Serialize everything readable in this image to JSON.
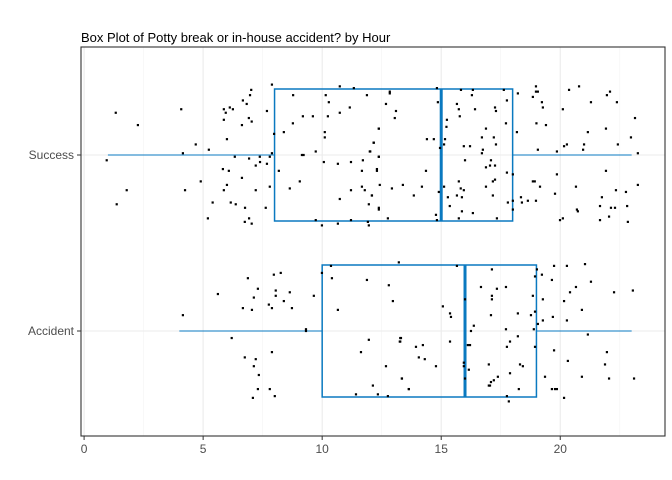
{
  "chart_data": {
    "type": "box",
    "title": "Box Plot of Potty break or in-house accident? by Hour",
    "xlabel": "",
    "ylabel": "",
    "xlim": [
      -0.13,
      24.4
    ],
    "x_ticks": [
      "0",
      "5",
      "10",
      "15",
      "20"
    ],
    "grid": true,
    "orientation": "horizontal",
    "colors": {
      "box": "#0a79c0",
      "points": "#000000",
      "grid": "#ebebeb",
      "border": "#333333"
    },
    "categories": [
      "Accident",
      "Success"
    ],
    "boxes": [
      {
        "category": "Accident",
        "min": 4,
        "q1": 10,
        "median": 16,
        "q3": 19,
        "max": 23
      },
      {
        "category": "Success",
        "min": 1,
        "q1": 8,
        "median": 15,
        "q3": 18,
        "max": 23
      }
    ],
    "points": {
      "Success": [
        [
          1.33,
          2.24
        ],
        [
          2.26,
          2.17
        ],
        [
          0.95,
          1.97
        ],
        [
          1.79,
          1.8
        ],
        [
          1.37,
          1.72
        ],
        [
          4.08,
          2.26
        ],
        [
          4.15,
          2.01
        ],
        [
          4.24,
          1.8
        ],
        [
          4.69,
          2.06
        ],
        [
          4.9,
          1.85
        ],
        [
          5.24,
          2.03
        ],
        [
          5.4,
          1.73
        ],
        [
          5.2,
          1.64
        ],
        [
          5.87,
          2.26
        ],
        [
          6.12,
          2.27
        ],
        [
          6.25,
          2.26
        ],
        [
          5.95,
          2.24
        ],
        [
          5.87,
          2.2
        ],
        [
          6.0,
          2.09
        ],
        [
          6.33,
          1.99
        ],
        [
          5.83,
          1.92
        ],
        [
          6.08,
          1.91
        ],
        [
          6.0,
          1.83
        ],
        [
          5.87,
          1.8
        ],
        [
          6.16,
          1.73
        ],
        [
          6.37,
          1.72
        ],
        [
          6.67,
          2.31
        ],
        [
          6.83,
          2.29
        ],
        [
          6.97,
          2.34
        ],
        [
          7.02,
          2.37
        ],
        [
          6.63,
          2.17
        ],
        [
          6.92,
          2.21
        ],
        [
          7.04,
          2.19
        ],
        [
          6.93,
          1.98
        ],
        [
          7.21,
          1.94
        ],
        [
          7.38,
          1.99
        ],
        [
          7.39,
          1.96
        ],
        [
          6.63,
          1.87
        ],
        [
          7.21,
          1.8
        ],
        [
          6.76,
          1.7
        ],
        [
          6.93,
          1.64
        ],
        [
          6.75,
          1.62
        ],
        [
          7.04,
          1.61
        ],
        [
          7.68,
          2.25
        ],
        [
          7.89,
          2.4
        ],
        [
          7.89,
          2.01
        ],
        [
          7.8,
          1.99
        ],
        [
          7.68,
          1.95
        ],
        [
          7.8,
          1.82
        ],
        [
          7.63,
          1.7
        ],
        [
          7.98,
          2.12
        ],
        [
          8.18,
          1.91
        ],
        [
          8.78,
          2.34
        ],
        [
          10.15,
          2.34
        ],
        [
          10.28,
          2.3
        ],
        [
          10.74,
          2.39
        ],
        [
          11.33,
          2.38
        ],
        [
          11.88,
          2.34
        ],
        [
          11.16,
          2.27
        ],
        [
          10.74,
          2.24
        ],
        [
          9.19,
          2.22
        ],
        [
          9.61,
          2.22
        ],
        [
          10.24,
          2.22
        ],
        [
          8.77,
          2.18
        ],
        [
          8.39,
          2.13
        ],
        [
          10.11,
          2.13
        ],
        [
          10.11,
          2.1
        ],
        [
          12.38,
          2.15
        ],
        [
          12.16,
          2.07
        ],
        [
          12.0,
          2.02
        ],
        [
          9.73,
          2.02
        ],
        [
          9.15,
          2.0
        ],
        [
          9.22,
          2.0
        ],
        [
          10.07,
          1.96
        ],
        [
          10.66,
          1.95
        ],
        [
          11.21,
          1.96
        ],
        [
          11.71,
          1.97
        ],
        [
          12.38,
          1.99
        ],
        [
          11.67,
          1.91
        ],
        [
          12.3,
          1.91
        ],
        [
          9.06,
          1.85
        ],
        [
          8.64,
          1.81
        ],
        [
          11.21,
          1.8
        ],
        [
          11.67,
          1.82
        ],
        [
          11.79,
          1.8
        ],
        [
          12.09,
          1.77
        ],
        [
          10.74,
          1.75
        ],
        [
          11.96,
          1.72
        ],
        [
          12.38,
          1.7
        ],
        [
          9.73,
          1.63
        ],
        [
          9.99,
          1.6
        ],
        [
          10.66,
          1.61
        ],
        [
          11.21,
          1.63
        ],
        [
          11.92,
          1.62
        ],
        [
          11.96,
          1.6
        ],
        [
          12.84,
          2.36
        ],
        [
          12.84,
          2.35
        ],
        [
          12.68,
          2.29
        ],
        [
          13.1,
          2.25
        ],
        [
          13.05,
          2.21
        ],
        [
          12.38,
          2.15
        ],
        [
          12.17,
          2.07
        ],
        [
          12.02,
          2.02
        ],
        [
          12.38,
          1.99
        ],
        [
          12.3,
          1.92
        ],
        [
          12.42,
          1.83
        ],
        [
          12.93,
          1.81
        ],
        [
          13.39,
          1.83
        ],
        [
          13.85,
          1.77
        ],
        [
          14.19,
          1.82
        ],
        [
          14.36,
          1.91
        ],
        [
          12.09,
          1.77
        ],
        [
          12.38,
          1.69
        ],
        [
          12.76,
          1.64
        ],
        [
          14.82,
          2.38
        ],
        [
          14.86,
          2.3
        ],
        [
          14.4,
          2.09
        ],
        [
          14.69,
          2.09
        ],
        [
          14.95,
          2.04
        ],
        [
          14.78,
          1.66
        ],
        [
          14.82,
          1.63
        ],
        [
          15.83,
          2.37
        ],
        [
          16.33,
          2.37
        ],
        [
          16.29,
          2.34
        ],
        [
          15.66,
          2.29
        ],
        [
          15.74,
          2.26
        ],
        [
          15.78,
          2.22
        ],
        [
          16.42,
          2.26
        ],
        [
          15.24,
          2.2
        ],
        [
          15.22,
          2.16
        ],
        [
          15.16,
          2.09
        ],
        [
          15.12,
          2.06
        ],
        [
          15.95,
          2.05
        ],
        [
          16.21,
          2.05
        ],
        [
          16.71,
          2.1
        ],
        [
          16.88,
          2.15
        ],
        [
          16.75,
          2.03
        ],
        [
          16.71,
          2.01
        ],
        [
          17.21,
          2.1
        ],
        [
          17.3,
          2.06
        ],
        [
          17.26,
          2.27
        ],
        [
          17.3,
          2.25
        ],
        [
          17.72,
          2.18
        ],
        [
          17.76,
          2.31
        ],
        [
          17.63,
          2.37
        ],
        [
          16.0,
          1.97
        ],
        [
          17.09,
          1.97
        ],
        [
          17.05,
          1.94
        ],
        [
          17.26,
          1.94
        ],
        [
          16.88,
          1.93
        ],
        [
          17.76,
          1.9
        ],
        [
          18.01,
          1.89
        ],
        [
          17.26,
          1.86
        ],
        [
          17.17,
          1.85
        ],
        [
          16.88,
          1.82
        ],
        [
          15.74,
          1.85
        ],
        [
          15.82,
          1.81
        ],
        [
          15.95,
          1.8
        ],
        [
          15.12,
          1.82
        ],
        [
          15.28,
          1.76
        ],
        [
          15.66,
          1.77
        ],
        [
          15.87,
          1.76
        ],
        [
          14.9,
          1.79
        ],
        [
          15.36,
          1.71
        ],
        [
          15.87,
          1.68
        ],
        [
          16.33,
          1.67
        ],
        [
          15.74,
          1.64
        ],
        [
          17.34,
          1.64
        ],
        [
          17.17,
          1.77
        ],
        [
          17.8,
          1.73
        ],
        [
          18.01,
          1.74
        ],
        [
          18.01,
          1.69
        ],
        [
          18.22,
          2.35
        ],
        [
          18.18,
          2.13
        ],
        [
          18.98,
          2.39
        ],
        [
          18.98,
          2.36
        ],
        [
          19.06,
          2.36
        ],
        [
          18.85,
          2.33
        ],
        [
          19.23,
          2.3
        ],
        [
          19.27,
          2.27
        ],
        [
          19.0,
          2.18
        ],
        [
          19.4,
          2.17
        ],
        [
          20.11,
          2.26
        ],
        [
          20.37,
          2.37
        ],
        [
          20.79,
          2.39
        ],
        [
          21.29,
          2.3
        ],
        [
          22.09,
          2.36
        ],
        [
          21.96,
          2.34
        ],
        [
          22.38,
          2.3
        ],
        [
          21.16,
          2.13
        ],
        [
          21.92,
          2.15
        ],
        [
          23.14,
          2.21
        ],
        [
          22.97,
          2.1
        ],
        [
          22.42,
          2.06
        ],
        [
          21.0,
          2.06
        ],
        [
          20.96,
          2.03
        ],
        [
          20.28,
          2.06
        ],
        [
          20.16,
          2.05
        ],
        [
          19.86,
          2.02
        ],
        [
          19.06,
          2.03
        ],
        [
          23.26,
          2.01
        ],
        [
          21.92,
          1.91
        ],
        [
          19.86,
          1.89
        ],
        [
          18.85,
          1.85
        ],
        [
          18.93,
          1.85
        ],
        [
          19.15,
          1.82
        ],
        [
          20.66,
          1.82
        ],
        [
          19.78,
          1.78
        ],
        [
          22.34,
          1.8
        ],
        [
          22.76,
          1.79
        ],
        [
          23.26,
          1.83
        ],
        [
          21.75,
          1.76
        ],
        [
          18.35,
          1.76
        ],
        [
          18.39,
          1.73
        ],
        [
          18.64,
          1.74
        ],
        [
          18.98,
          1.74
        ],
        [
          20.7,
          1.69
        ],
        [
          20.74,
          1.68
        ],
        [
          21.67,
          1.71
        ],
        [
          22.13,
          1.7
        ],
        [
          22.3,
          1.7
        ],
        [
          22.81,
          1.71
        ],
        [
          20.11,
          1.64
        ],
        [
          19.99,
          1.63
        ],
        [
          21.67,
          1.63
        ],
        [
          22.05,
          1.65
        ],
        [
          22.84,
          1.62
        ]
      ],
      "Accident": [
        [
          4.15,
          1.09
        ],
        [
          5.62,
          1.21
        ],
        [
          6.88,
          1.3
        ],
        [
          7.3,
          1.24
        ],
        [
          7.13,
          1.19
        ],
        [
          6.67,
          1.13
        ],
        [
          7.05,
          1.12
        ],
        [
          7.97,
          1.32
        ],
        [
          8.26,
          1.33
        ],
        [
          8.05,
          1.23
        ],
        [
          8.05,
          1.2
        ],
        [
          8.64,
          1.22
        ],
        [
          7.76,
          1.15
        ],
        [
          7.89,
          1.13
        ],
        [
          8.39,
          1.17
        ],
        [
          8.73,
          1.13
        ],
        [
          9.65,
          1.2
        ],
        [
          9.99,
          1.33
        ],
        [
          10.37,
          1.37
        ],
        [
          10.41,
          1.3
        ],
        [
          9.32,
          1.01
        ],
        [
          9.32,
          1.0
        ],
        [
          6.2,
          0.96
        ],
        [
          6.75,
          0.85
        ],
        [
          7.21,
          0.84
        ],
        [
          7.13,
          0.8
        ],
        [
          7.89,
          0.88
        ],
        [
          7.34,
          0.75
        ],
        [
          7.3,
          0.67
        ],
        [
          7.09,
          0.62
        ],
        [
          7.8,
          0.67
        ],
        [
          8.01,
          0.63
        ],
        [
          10.66,
          1.12
        ],
        [
          11.88,
          1.29
        ],
        [
          12.8,
          1.26
        ],
        [
          12.97,
          1.17
        ],
        [
          13.22,
          1.39
        ],
        [
          11.96,
          0.95
        ],
        [
          13.31,
          0.96
        ],
        [
          13.26,
          0.94
        ],
        [
          11.63,
          0.88
        ],
        [
          12.68,
          0.8
        ],
        [
          13.35,
          0.73
        ],
        [
          12.13,
          0.69
        ],
        [
          11.42,
          0.64
        ],
        [
          12.34,
          0.64
        ],
        [
          12.76,
          0.63
        ],
        [
          13.64,
          0.67
        ],
        [
          15.66,
          1.37
        ],
        [
          15.07,
          1.14
        ],
        [
          15.37,
          1.1
        ],
        [
          15.41,
          1.08
        ],
        [
          16.0,
          1.18
        ],
        [
          16.37,
          1.03
        ],
        [
          16.25,
          1.0
        ],
        [
          13.28,
          0.96
        ],
        [
          13.28,
          0.94
        ],
        [
          13.94,
          0.91
        ],
        [
          14.23,
          0.92
        ],
        [
          14.06,
          0.85
        ],
        [
          14.31,
          0.84
        ],
        [
          14.78,
          0.8
        ],
        [
          15.37,
          0.94
        ],
        [
          13.35,
          0.73
        ],
        [
          13.64,
          0.67
        ],
        [
          15.95,
          0.82
        ],
        [
          15.95,
          0.8
        ],
        [
          16.0,
          0.73
        ],
        [
          16.16,
          0.78
        ],
        [
          16.12,
          0.92
        ],
        [
          16.21,
          0.92
        ],
        [
          17.13,
          1.35
        ],
        [
          16.67,
          1.25
        ],
        [
          17.34,
          1.24
        ],
        [
          17.72,
          1.25
        ],
        [
          17.13,
          1.2
        ],
        [
          17.13,
          1.18
        ],
        [
          17.09,
          1.09
        ],
        [
          18.22,
          1.1
        ],
        [
          18.77,
          1.09
        ],
        [
          18.94,
          1.11
        ],
        [
          18.85,
          1.2
        ],
        [
          18.94,
          1.31
        ],
        [
          19.02,
          1.35
        ],
        [
          17.72,
          1.01
        ],
        [
          18.89,
          1.01
        ],
        [
          19.06,
          1.04
        ],
        [
          18.22,
          0.97
        ],
        [
          17.89,
          0.94
        ],
        [
          17.76,
          0.91
        ],
        [
          18.94,
          0.91
        ],
        [
          17.0,
          0.81
        ],
        [
          18.31,
          0.81
        ],
        [
          18.43,
          0.8
        ],
        [
          17.89,
          0.76
        ],
        [
          17.38,
          0.74
        ],
        [
          17.21,
          0.72
        ],
        [
          17.09,
          0.71
        ],
        [
          17.0,
          0.69
        ],
        [
          17.05,
          0.69
        ],
        [
          18.26,
          0.67
        ],
        [
          17.76,
          0.63
        ],
        [
          17.84,
          0.6
        ],
        [
          19.74,
          1.37
        ],
        [
          20.28,
          1.37
        ],
        [
          21.04,
          1.38
        ],
        [
          19.23,
          1.32
        ],
        [
          19.65,
          1.29
        ],
        [
          21.29,
          1.28
        ],
        [
          20.66,
          1.25
        ],
        [
          20.41,
          1.22
        ],
        [
          20.16,
          1.17
        ],
        [
          20.91,
          1.12
        ],
        [
          19.27,
          1.18
        ],
        [
          19.69,
          1.08
        ],
        [
          20.28,
          1.06
        ],
        [
          19.27,
          1.06
        ],
        [
          22.26,
          1.22
        ],
        [
          23.05,
          1.23
        ],
        [
          21.16,
          0.98
        ],
        [
          19.74,
          0.89
        ],
        [
          21.96,
          0.88
        ],
        [
          20.32,
          0.83
        ],
        [
          21.88,
          0.81
        ],
        [
          19.36,
          0.74
        ],
        [
          20.91,
          0.74
        ],
        [
          22.05,
          0.73
        ],
        [
          23.1,
          0.73
        ],
        [
          19.65,
          0.67
        ],
        [
          19.78,
          0.67
        ],
        [
          19.86,
          0.67
        ],
        [
          20.16,
          0.62
        ]
      ]
    }
  }
}
